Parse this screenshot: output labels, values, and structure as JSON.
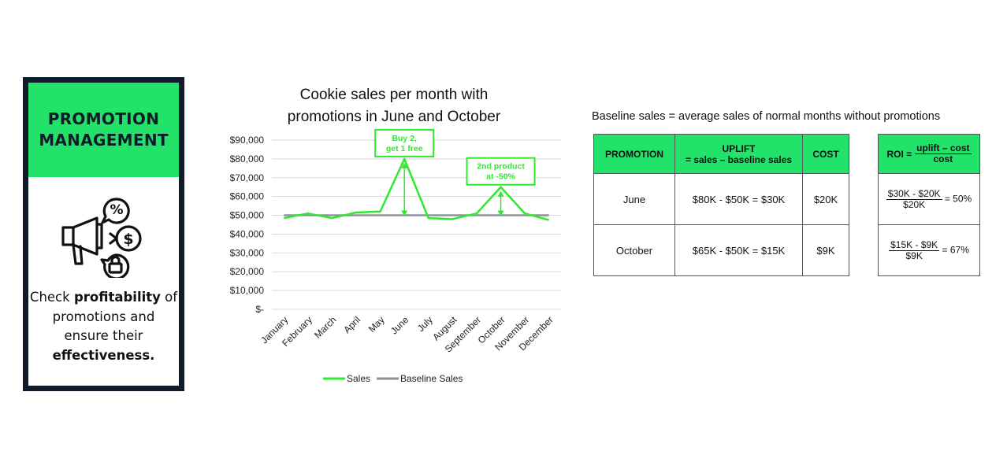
{
  "card": {
    "title_line1": "PROMOTION",
    "title_line2": "MANAGEMENT",
    "icon": "megaphone-percent-dollar-lock-icon",
    "desc_1": "Check ",
    "desc_bold1": "profitability",
    "desc_2": " of promotions and ensure their ",
    "desc_bold2": "effectiveness."
  },
  "chart": {
    "title_line1": "Cookie sales per month with",
    "title_line2": "promotions in June and October"
  },
  "chart_data": {
    "type": "line",
    "title": "Cookie sales per month with promotions in June and October",
    "categories": [
      "January",
      "February",
      "March",
      "April",
      "May",
      "June",
      "July",
      "August",
      "September",
      "October",
      "November",
      "December"
    ],
    "series": [
      {
        "name": "Sales",
        "color": "#2fe82f",
        "values": [
          48500,
          51000,
          48500,
          51500,
          52000,
          80000,
          48500,
          48000,
          51000,
          65000,
          51000,
          47500
        ]
      },
      {
        "name": "Baseline Sales",
        "color": "#8d9399",
        "values": [
          50000,
          50000,
          50000,
          50000,
          50000,
          50000,
          50000,
          50000,
          50000,
          50000,
          50000,
          50000
        ]
      }
    ],
    "y_ticks": [
      "$90,000",
      "$80,000",
      "$70,000",
      "$60,000",
      "$50,000",
      "$40,000",
      "$30,000",
      "$20,000",
      "$10,000",
      "$-"
    ],
    "ylim": [
      0,
      90000
    ],
    "grid": true,
    "legend": "bottom",
    "annotations": [
      {
        "category": "June",
        "line1": "Buy 2,",
        "line2": "get 1 free",
        "value": 80000,
        "baseline": 50000
      },
      {
        "category": "October",
        "line1": "2nd product",
        "line2": "at -50%",
        "value": 65000,
        "baseline": 50000
      }
    ],
    "legend_labels": {
      "sales": "Sales",
      "baseline": "Baseline Sales"
    }
  },
  "note": "Baseline sales = average sales of normal months without promotions",
  "table1": {
    "headers": {
      "promotion": "PROMOTION",
      "uplift1": "UPLIFT",
      "uplift2": "= sales – baseline sales",
      "cost": "COST"
    },
    "rows": [
      {
        "promotion": "June",
        "uplift": "$80K - $50K = $30K",
        "cost": "$20K"
      },
      {
        "promotion": "October",
        "uplift": "$65K - $50K = $15K",
        "cost": "$9K"
      }
    ]
  },
  "table2": {
    "header_label": "ROI =",
    "header_num": "uplift – cost",
    "header_den": "cost",
    "rows": [
      {
        "num": "$30K - $20K",
        "den": "$20K",
        "result": "= 50%"
      },
      {
        "num": "$15K - $9K",
        "den": "$9K",
        "result": "= 67%"
      }
    ]
  },
  "colors": {
    "accent": "#22e26a",
    "navy": "#0f1a2a",
    "sales": "#2fe82f",
    "baseline": "#8d9399"
  }
}
